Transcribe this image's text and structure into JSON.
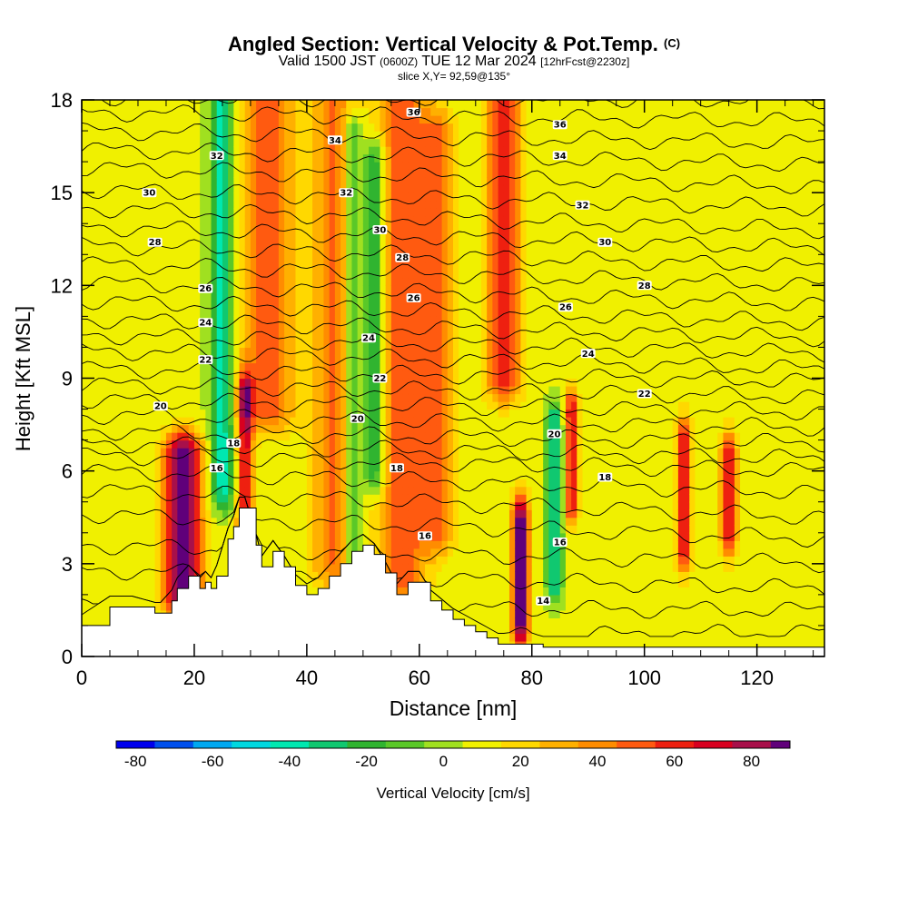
{
  "header": {
    "title": "Angled Section: Vertical Velocity & Pot.Temp.",
    "copyright_mark": "(C)",
    "valid_prefix": "Valid 1500 JST",
    "valid_utc": "(0600Z)",
    "valid_date": "TUE 12 Mar 2024",
    "forecast": "[12hrFcst@2230z]",
    "slice": "slice X,Y= 92,59@135°"
  },
  "chart_data": {
    "type": "heatmap",
    "title": "Angled Section: Vertical Velocity & Pot.Temp.",
    "xlabel": "Distance [nm]",
    "ylabel": "Height [Kft MSL]",
    "xlim": [
      0,
      132
    ],
    "ylim": [
      0,
      18
    ],
    "x_ticks": [
      0,
      20,
      40,
      60,
      80,
      100,
      120
    ],
    "y_ticks": [
      0,
      3,
      6,
      9,
      12,
      15,
      18
    ],
    "grid": false,
    "colorbar": {
      "label": "Vertical Velocity [cm/s]",
      "levels": [
        -85,
        -75,
        -65,
        -55,
        -45,
        -35,
        -25,
        -15,
        -5,
        5,
        15,
        25,
        35,
        45,
        55,
        65,
        75,
        85,
        90
      ],
      "tick_values": [
        -80,
        -60,
        -40,
        -20,
        0,
        20,
        40,
        60,
        80
      ],
      "colors": [
        "#0000ee",
        "#0050ee",
        "#00a8f0",
        "#00d8e0",
        "#00e8b0",
        "#10c870",
        "#30b430",
        "#5ac828",
        "#a0e020",
        "#f0f000",
        "#ffd800",
        "#ffb000",
        "#ff8c00",
        "#ff5a10",
        "#ee2010",
        "#d80020",
        "#a8104a",
        "#60007a"
      ]
    },
    "background_value": 8,
    "terrain": {
      "x": [
        0,
        5,
        9,
        13,
        14,
        16,
        17,
        19,
        21,
        22,
        23,
        24,
        26,
        27,
        28,
        29,
        31,
        32,
        34,
        36,
        38,
        40,
        42,
        44,
        46,
        48,
        50,
        52,
        54,
        56,
        58,
        60,
        62,
        64,
        66,
        68,
        70,
        72,
        74,
        76,
        78,
        80,
        82,
        132
      ],
      "height": [
        1,
        1.6,
        1.6,
        1.4,
        1.4,
        1.8,
        2.2,
        2.6,
        2.2,
        2.4,
        2.2,
        2.6,
        3.8,
        4.2,
        4.8,
        4.8,
        3.6,
        2.9,
        3.4,
        2.9,
        2.3,
        2.0,
        2.2,
        2.6,
        3.0,
        3.4,
        3.6,
        3.3,
        2.7,
        2.0,
        2.4,
        2.4,
        1.8,
        1.5,
        1.2,
        1.0,
        0.8,
        0.6,
        0.4,
        0.4,
        0.4,
        0.4,
        0.3,
        0.3
      ]
    },
    "vertical_velocity_features": [
      {
        "x": 18,
        "z0": 2.0,
        "z1": 6.5,
        "peak": 92,
        "width_nm": 3.2
      },
      {
        "x": 25,
        "z0": 5.5,
        "z1": 18,
        "peak": -48,
        "width_nm": 2.2
      },
      {
        "x": 29,
        "z0": 4.0,
        "z1": 8.5,
        "peak": 62,
        "width_nm": 1.4
      },
      {
        "x": 33,
        "z0": 8.0,
        "z1": 18,
        "peak": 42,
        "width_nm": 5
      },
      {
        "x": 45,
        "z0": 3.0,
        "z1": 18,
        "peak": 38,
        "width_nm": 4
      },
      {
        "x": 48,
        "z0": 3.0,
        "z1": 17,
        "peak": -38,
        "width_nm": 1.6
      },
      {
        "x": 52,
        "z0": 6.0,
        "z1": 16,
        "peak": -40,
        "width_nm": 1.8
      },
      {
        "x": 57,
        "z0": 2.5,
        "z1": 18,
        "peak": 45,
        "width_nm": 4
      },
      {
        "x": 63,
        "z0": 4.0,
        "z1": 17,
        "peak": 38,
        "width_nm": 3
      },
      {
        "x": 75,
        "z0": 9.0,
        "z1": 18,
        "peak": 58,
        "width_nm": 3
      },
      {
        "x": 78,
        "z0": 1.0,
        "z1": 4.5,
        "peak": 88,
        "width_nm": 1.4
      },
      {
        "x": 84,
        "z0": 2.5,
        "z1": 7.5,
        "peak": -48,
        "width_nm": 1.4
      },
      {
        "x": 87,
        "z0": 5.0,
        "z1": 8.0,
        "peak": 58,
        "width_nm": 1.2
      },
      {
        "x": 107,
        "z0": 3.5,
        "z1": 7.0,
        "peak": 62,
        "width_nm": 1.2
      },
      {
        "x": 115,
        "z0": 4.0,
        "z1": 6.5,
        "peak": 58,
        "width_nm": 1.4
      }
    ],
    "potential_temperature": {
      "levels": [
        8,
        9,
        10,
        11,
        12,
        13,
        14,
        15,
        16,
        17,
        18,
        19,
        20,
        21,
        22,
        23,
        24,
        25,
        26,
        27,
        28,
        29,
        30,
        31,
        32,
        33,
        34,
        35,
        36
      ],
      "height_at_x0": [
        0.5,
        1.6,
        2.8,
        3.6,
        4.6,
        5.4,
        6.0,
        6.5,
        6.9,
        7.3,
        7.8,
        8.3,
        8.8,
        9.3,
        9.9,
        10.4,
        10.9,
        11.5,
        12.1,
        12.7,
        13.3,
        13.9,
        14.5,
        15.1,
        15.8,
        16.4,
        17.0,
        17.6,
        18.1
      ],
      "height_at_x132": [
        0.8,
        1.5,
        2.2,
        3.0,
        3.8,
        4.5,
        5.3,
        6.0,
        6.4,
        6.9,
        7.4,
        7.9,
        8.4,
        8.9,
        9.3,
        9.8,
        10.3,
        10.8,
        11.4,
        12.0,
        12.6,
        13.2,
        13.8,
        14.5,
        15.2,
        15.9,
        16.6,
        17.3,
        18.0
      ],
      "labels": [
        {
          "text": "30",
          "x": 12,
          "y": 15.0
        },
        {
          "text": "28",
          "x": 13,
          "y": 13.4
        },
        {
          "text": "20",
          "x": 14,
          "y": 8.1
        },
        {
          "text": "26",
          "x": 22,
          "y": 11.9
        },
        {
          "text": "24",
          "x": 22,
          "y": 10.8
        },
        {
          "text": "22",
          "x": 22,
          "y": 9.6
        },
        {
          "text": "32",
          "x": 24,
          "y": 16.2
        },
        {
          "text": "18",
          "x": 27,
          "y": 6.9
        },
        {
          "text": "16",
          "x": 24,
          "y": 6.1
        },
        {
          "text": "34",
          "x": 45,
          "y": 16.7
        },
        {
          "text": "32",
          "x": 47,
          "y": 15.0
        },
        {
          "text": "30",
          "x": 53,
          "y": 13.8
        },
        {
          "text": "28",
          "x": 57,
          "y": 12.9
        },
        {
          "text": "26",
          "x": 59,
          "y": 11.6
        },
        {
          "text": "24",
          "x": 51,
          "y": 10.3
        },
        {
          "text": "22",
          "x": 53,
          "y": 9.0
        },
        {
          "text": "20",
          "x": 49,
          "y": 7.7
        },
        {
          "text": "18",
          "x": 56,
          "y": 6.1
        },
        {
          "text": "16",
          "x": 61,
          "y": 3.9
        },
        {
          "text": "36",
          "x": 59,
          "y": 17.6
        },
        {
          "text": "36",
          "x": 85,
          "y": 17.2
        },
        {
          "text": "34",
          "x": 85,
          "y": 16.2
        },
        {
          "text": "32",
          "x": 89,
          "y": 14.6
        },
        {
          "text": "30",
          "x": 93,
          "y": 13.4
        },
        {
          "text": "28",
          "x": 100,
          "y": 12.0
        },
        {
          "text": "26",
          "x": 86,
          "y": 11.3
        },
        {
          "text": "24",
          "x": 90,
          "y": 9.8
        },
        {
          "text": "22",
          "x": 100,
          "y": 8.5
        },
        {
          "text": "20",
          "x": 84,
          "y": 7.2
        },
        {
          "text": "18",
          "x": 93,
          "y": 5.8
        },
        {
          "text": "16",
          "x": 85,
          "y": 3.7
        },
        {
          "text": "14",
          "x": 82,
          "y": 1.8
        }
      ]
    }
  }
}
